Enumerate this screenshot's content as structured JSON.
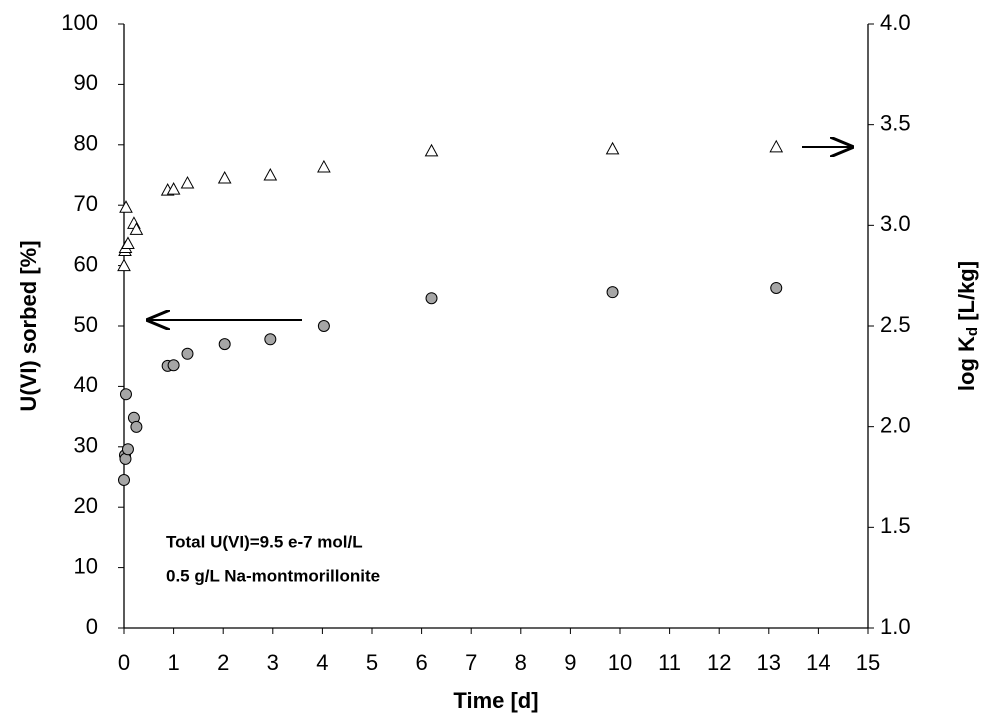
{
  "chart_data": {
    "type": "scatter",
    "xlabel": "Time [d]",
    "ylabel": "U(VI) sorbed [%]",
    "y2label": [
      "log K",
      "d",
      " [L/kg]"
    ],
    "annotations": [
      "Total U(VI)=9.5 e-7 mol/L",
      "0.5 g/L Na-montmorillonite"
    ],
    "xlim": [
      0,
      15
    ],
    "xticks": [
      0,
      1,
      2,
      3,
      4,
      5,
      6,
      7,
      8,
      9,
      10,
      11,
      12,
      13,
      14,
      15
    ],
    "ylim": [
      0,
      100
    ],
    "yticks": [
      0,
      10,
      20,
      30,
      40,
      50,
      60,
      70,
      80,
      90,
      100
    ],
    "y2lim": [
      1.0,
      4.0
    ],
    "y2ticks": [
      {
        "value": 1.0,
        "label": "1.0"
      },
      {
        "value": 1.5,
        "label": "1.5"
      },
      {
        "value": 2.0,
        "label": "2.0"
      },
      {
        "value": 2.5,
        "label": "2.5"
      },
      {
        "value": 3.0,
        "label": "3.0"
      },
      {
        "value": 3.5,
        "label": "3.5"
      },
      {
        "value": 4.0,
        "label": "4.0"
      }
    ],
    "series": [
      {
        "marker": "circle",
        "color": "#a6a6a6",
        "x": [
          0.0,
          0.02,
          0.03,
          0.04,
          0.08,
          0.2,
          0.25,
          0.88,
          1.0,
          1.28,
          2.03,
          2.95,
          4.03,
          6.2,
          9.85,
          13.15
        ],
        "values": [
          24.5,
          28.6,
          28.0,
          38.7,
          29.6,
          34.8,
          33.3,
          43.4,
          43.5,
          45.4,
          47.0,
          47.8,
          50.0,
          54.6,
          55.6,
          56.3
        ]
      },
      {
        "marker": "triangle",
        "color": "#ffffff",
        "axis": "y2",
        "x": [
          0.0,
          0.02,
          0.03,
          0.04,
          0.08,
          0.2,
          0.25,
          0.88,
          1.0,
          1.28,
          2.03,
          2.95,
          4.03,
          6.2,
          9.85,
          13.15
        ],
        "values": [
          2.8,
          2.875,
          2.89,
          3.09,
          2.91,
          3.01,
          2.98,
          3.175,
          3.18,
          3.21,
          3.235,
          3.25,
          3.29,
          3.37,
          3.38,
          3.39
        ]
      }
    ]
  }
}
